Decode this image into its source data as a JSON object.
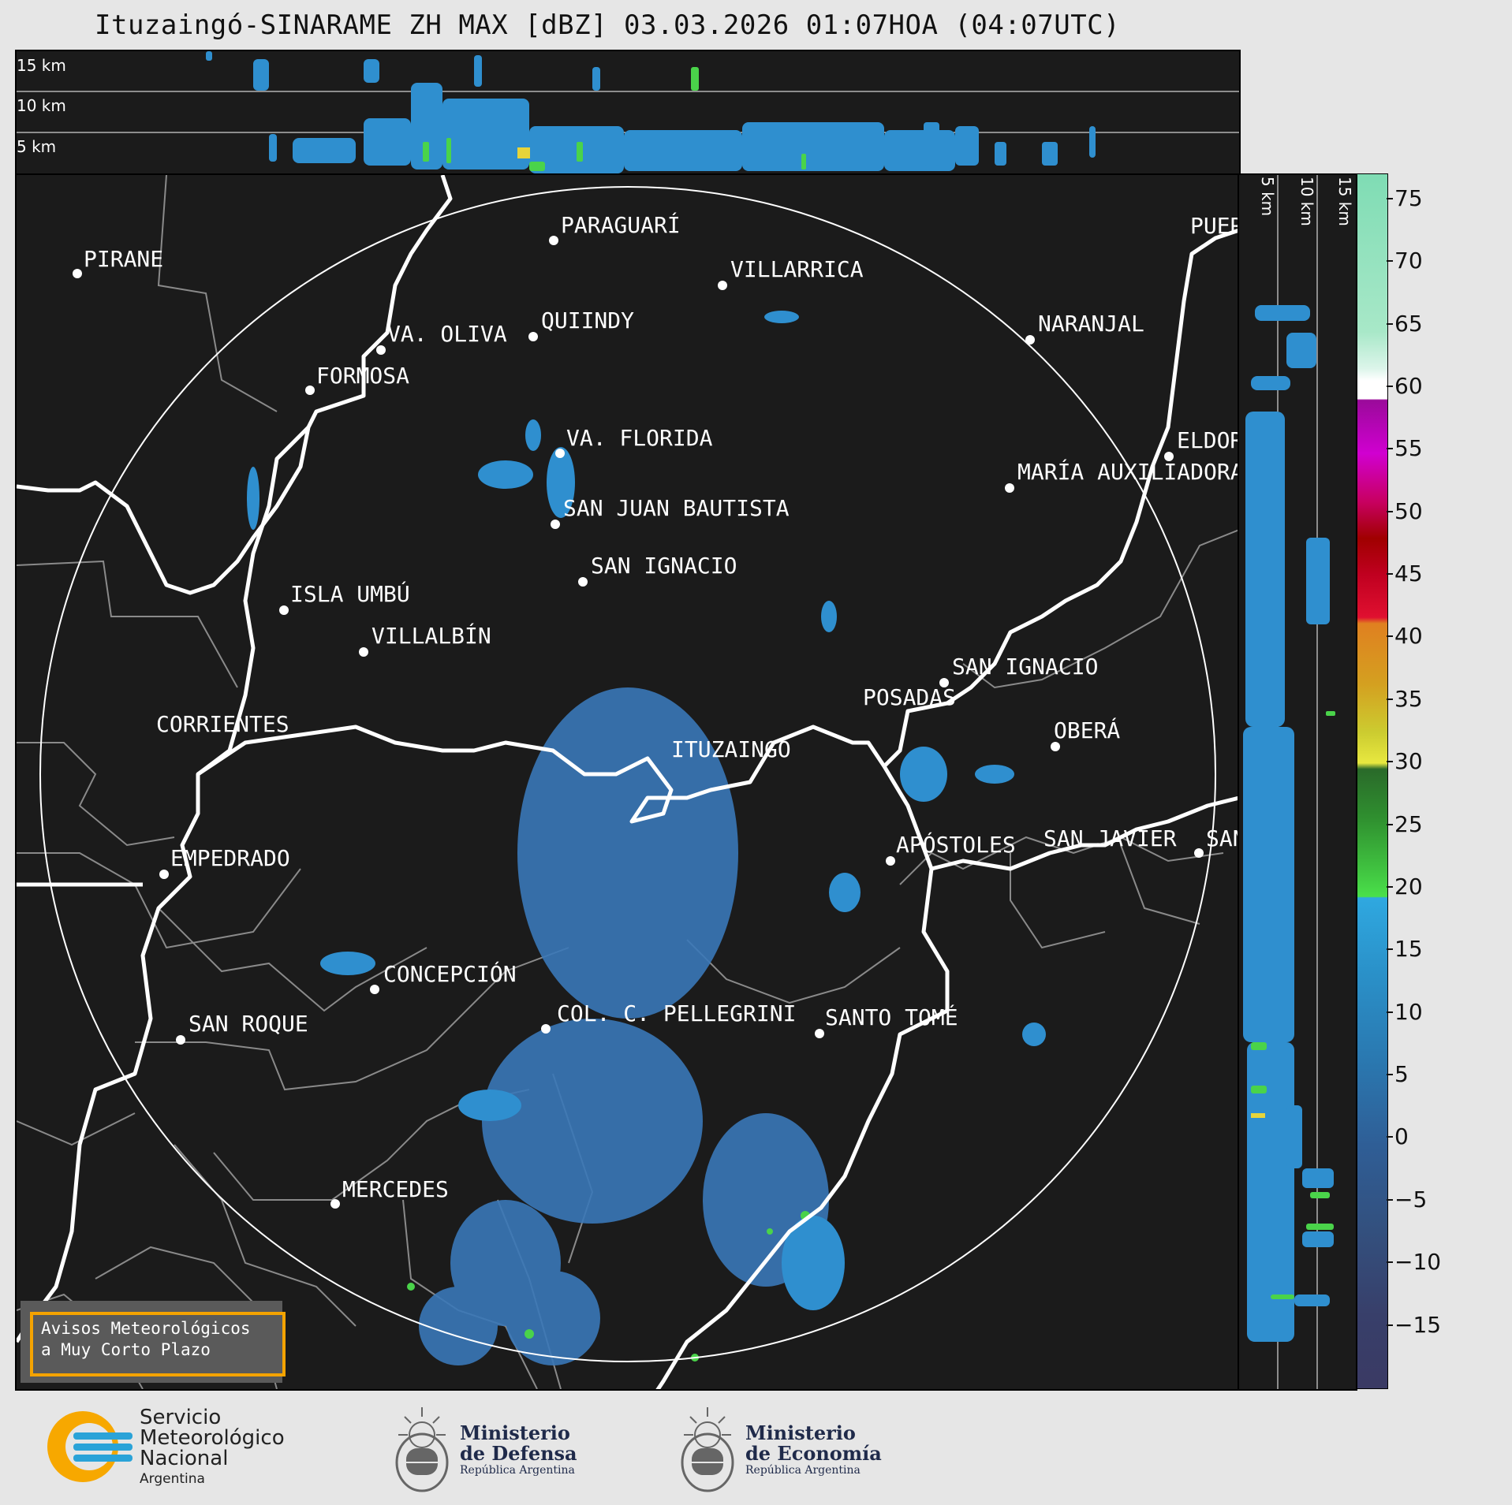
{
  "title": "Ituzaingó-SINARAME ZH MAX [dBZ] 03.03.2026 01:07HOA (04:07UTC)",
  "top_section": {
    "labels": [
      "15 km",
      "10 km",
      "5 km"
    ]
  },
  "right_section": {
    "labels": [
      "5 km",
      "10 km",
      "15 km"
    ]
  },
  "colorbar": {
    "unit": "dBZ",
    "ticks": [
      "75",
      "70",
      "65",
      "60",
      "55",
      "50",
      "45",
      "40",
      "35",
      "30",
      "25",
      "20",
      "15",
      "10",
      "5",
      "0",
      "−5",
      "−10",
      "−15"
    ],
    "range": [
      -20,
      77
    ]
  },
  "cities": [
    {
      "name": "PARAGUARÍ"
    },
    {
      "name": "PIRANE"
    },
    {
      "name": "VILLARRICA"
    },
    {
      "name": "QUIINDY"
    },
    {
      "name": "VA. OLIVA"
    },
    {
      "name": "NARANJAL"
    },
    {
      "name": "FORMOSA"
    },
    {
      "name": "VA. FLORIDA"
    },
    {
      "name": "ELDORADO"
    },
    {
      "name": "MARÍA AUXILIADORA"
    },
    {
      "name": "SAN JUAN BAUTISTA"
    },
    {
      "name": "SAN IGNACIO"
    },
    {
      "name": "ISLA UMBÚ"
    },
    {
      "name": "VILLALBÍN"
    },
    {
      "name": "SAN IGNACIO"
    },
    {
      "name": "POSADAS"
    },
    {
      "name": "CORRIENTES"
    },
    {
      "name": "ITUZAINGÓ"
    },
    {
      "name": "OBERÁ"
    },
    {
      "name": "APÓSTOLES"
    },
    {
      "name": "SAN JAVIER"
    },
    {
      "name": "SAN"
    },
    {
      "name": "EMPEDRADO"
    },
    {
      "name": "CONCEPCIÓN"
    },
    {
      "name": "COL. C. PELLEGRINI"
    },
    {
      "name": "SANTO TOMÉ"
    },
    {
      "name": "SAN ROQUE"
    },
    {
      "name": "MERCEDES"
    },
    {
      "name": "PUERTO"
    }
  ],
  "avisos": {
    "line1": "Avisos Meteorológicos",
    "line2": "a Muy Corto Plazo"
  },
  "logos": {
    "smn": {
      "line1": "Servicio",
      "line2": "Meteorológico",
      "line3": "Nacional",
      "line4": "Argentina"
    },
    "defensa": {
      "line1": "Ministerio",
      "line2": "de Defensa",
      "line3": "República Argentina"
    },
    "economia": {
      "line1": "Ministerio",
      "line2": "de Economía",
      "line3": "República Argentina"
    }
  },
  "colors": {
    "panel_bg": "#1b1b1b",
    "echo_blue": "#3a78b8",
    "echo_green": "#4ad34a",
    "border_white": "#ffffff",
    "border_gray": "#8a8a8a",
    "avisos_border": "#f4a300",
    "smn_orange": "#f7a800",
    "smn_blue": "#2aa3d8"
  }
}
